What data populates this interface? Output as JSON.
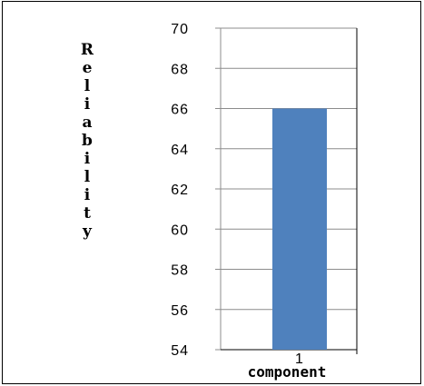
{
  "chart_data": {
    "type": "bar",
    "categories": [
      "1"
    ],
    "series": [
      {
        "values": [
          66
        ]
      }
    ],
    "title": "",
    "xlabel": "component",
    "ylabel": "Reliability",
    "ylim": [
      54,
      70
    ],
    "yticks": [
      54,
      56,
      58,
      60,
      62,
      64,
      66,
      68,
      70
    ],
    "grid": true,
    "legend": "none",
    "bar_color": "#4f81bd"
  }
}
